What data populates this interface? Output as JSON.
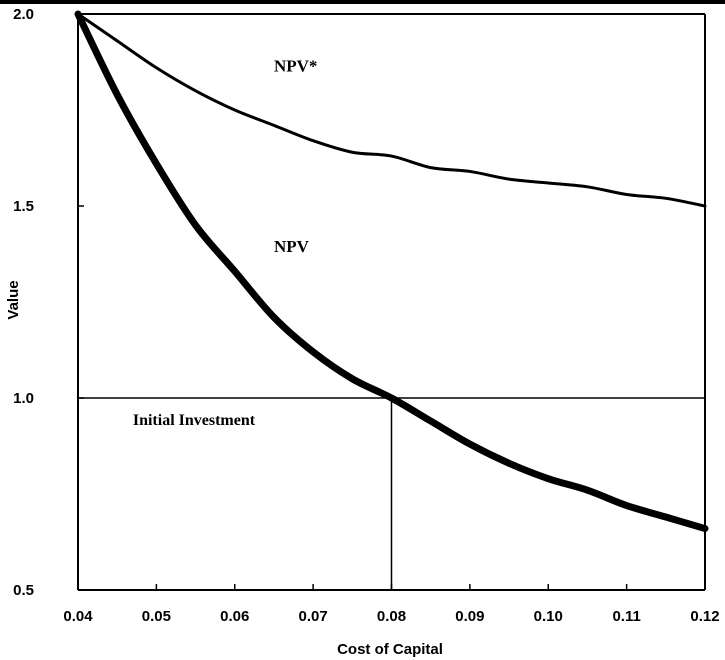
{
  "chart_data": {
    "type": "line",
    "title": "",
    "xlabel": "Cost of Capital",
    "ylabel": "Value",
    "xlim": [
      0.04,
      0.12
    ],
    "ylim": [
      0.5,
      2.0
    ],
    "x_ticks": [
      "0.04",
      "0.05",
      "0.06",
      "0.07",
      "0.08",
      "0.09",
      "0.10",
      "0.11",
      "0.12"
    ],
    "y_ticks": [
      "0.5",
      "1.0",
      "1.5",
      "2.0"
    ],
    "grid": false,
    "series": [
      {
        "name": "NPV*",
        "x": [
          0.04,
          0.045,
          0.05,
          0.055,
          0.06,
          0.065,
          0.07,
          0.075,
          0.08,
          0.085,
          0.09,
          0.095,
          0.1,
          0.105,
          0.11,
          0.115,
          0.12
        ],
        "y": [
          2.0,
          1.93,
          1.86,
          1.8,
          1.75,
          1.71,
          1.67,
          1.64,
          1.63,
          1.6,
          1.59,
          1.57,
          1.56,
          1.55,
          1.53,
          1.52,
          1.5
        ],
        "style": "thin"
      },
      {
        "name": "NPV",
        "x": [
          0.04,
          0.045,
          0.05,
          0.055,
          0.06,
          0.065,
          0.07,
          0.075,
          0.08,
          0.085,
          0.09,
          0.095,
          0.1,
          0.105,
          0.11,
          0.115,
          0.12
        ],
        "y": [
          2.0,
          1.79,
          1.61,
          1.45,
          1.33,
          1.21,
          1.12,
          1.05,
          1.0,
          0.94,
          0.88,
          0.83,
          0.79,
          0.76,
          0.72,
          0.69,
          0.66
        ],
        "style": "thick"
      }
    ],
    "reference_lines": [
      {
        "type": "horizontal",
        "y": 1.0,
        "label": "Initial Investment"
      },
      {
        "type": "vertical",
        "x": 0.08,
        "from_y": 0.5,
        "to_y": 1.0
      }
    ],
    "annotations": [
      {
        "text": "NPV*",
        "x": 0.065,
        "y": 1.85
      },
      {
        "text": "NPV",
        "x": 0.065,
        "y": 1.38
      },
      {
        "text": "Initial Investment",
        "x": 0.047,
        "y": 0.93
      }
    ]
  }
}
